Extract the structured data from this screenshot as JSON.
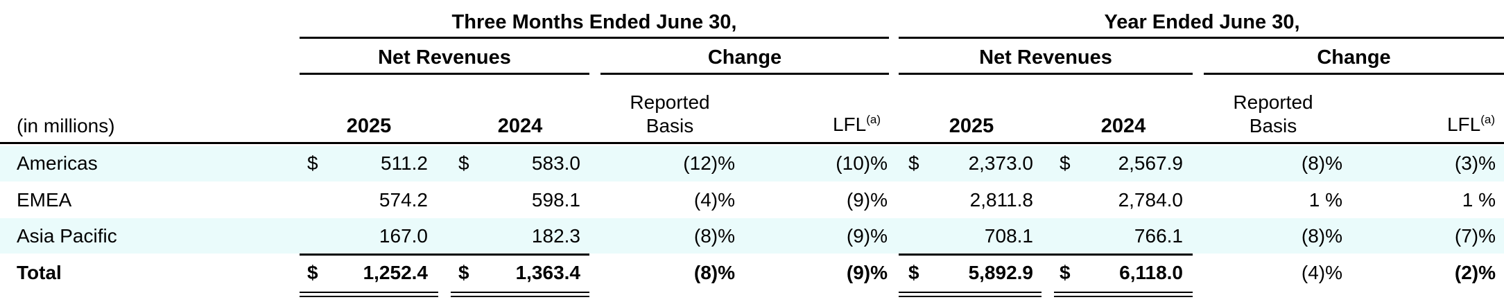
{
  "header": {
    "three_months": "Three Months Ended June 30,",
    "year": "Year Ended June 30,",
    "net_revenues": "Net Revenues",
    "change": "Change",
    "units": "(in millions)",
    "col_2025": "2025",
    "col_2024": "2024",
    "reported_line1": "Reported",
    "reported_line2": "Basis",
    "lfl": "LFL",
    "lfl_note": "(a)"
  },
  "currency": "$",
  "rows": [
    {
      "label": "Americas",
      "q25": "511.2",
      "q24": "583.0",
      "q_rep": "(12)%",
      "q_lfl": "(10)%",
      "y25": "2,373.0",
      "y24": "2,567.9",
      "y_rep": "(8)%",
      "y_lfl": "(3)%"
    },
    {
      "label": "EMEA",
      "q25": "574.2",
      "q24": "598.1",
      "q_rep": "(4)%",
      "q_lfl": "(9)%",
      "y25": "2,811.8",
      "y24": "2,784.0",
      "y_rep": "1 %",
      "y_lfl": "1 %"
    },
    {
      "label": "Asia Pacific",
      "q25": "167.0",
      "q24": "182.3",
      "q_rep": "(8)%",
      "q_lfl": "(9)%",
      "y25": "708.1",
      "y24": "766.1",
      "y_rep": "(8)%",
      "y_lfl": "(7)%"
    },
    {
      "label": "Total",
      "q25": "1,252.4",
      "q24": "1,363.4",
      "q_rep": "(8)%",
      "q_lfl": "(9)%",
      "y25": "5,892.9",
      "y24": "6,118.0",
      "y_rep": "(4)%",
      "y_lfl": "(2)%"
    }
  ]
}
